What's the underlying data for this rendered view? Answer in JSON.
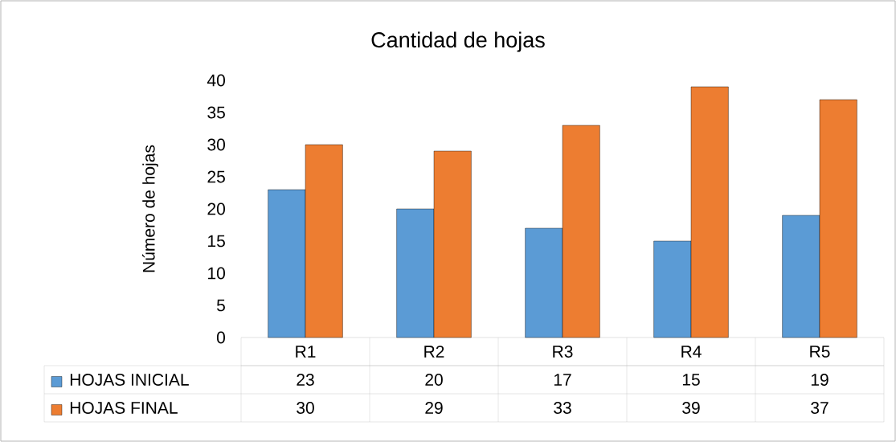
{
  "chart_data": {
    "type": "bar",
    "title": "Cantidad de hojas",
    "ylabel": "Número de hojas",
    "categories": [
      "R1",
      "R2",
      "R3",
      "R4",
      "R5"
    ],
    "series": [
      {
        "name": "HOJAS INICIAL",
        "color": "#5b9bd5",
        "values": [
          23,
          20,
          17,
          15,
          19
        ]
      },
      {
        "name": "HOJAS FINAL",
        "color": "#ed7d31",
        "values": [
          30,
          29,
          33,
          39,
          37
        ]
      }
    ],
    "ylim": [
      0,
      40
    ],
    "yticks": [
      0,
      5,
      10,
      15,
      20,
      25,
      30,
      35,
      40
    ],
    "data_labels": true,
    "legend": "bottom",
    "grid": false
  }
}
